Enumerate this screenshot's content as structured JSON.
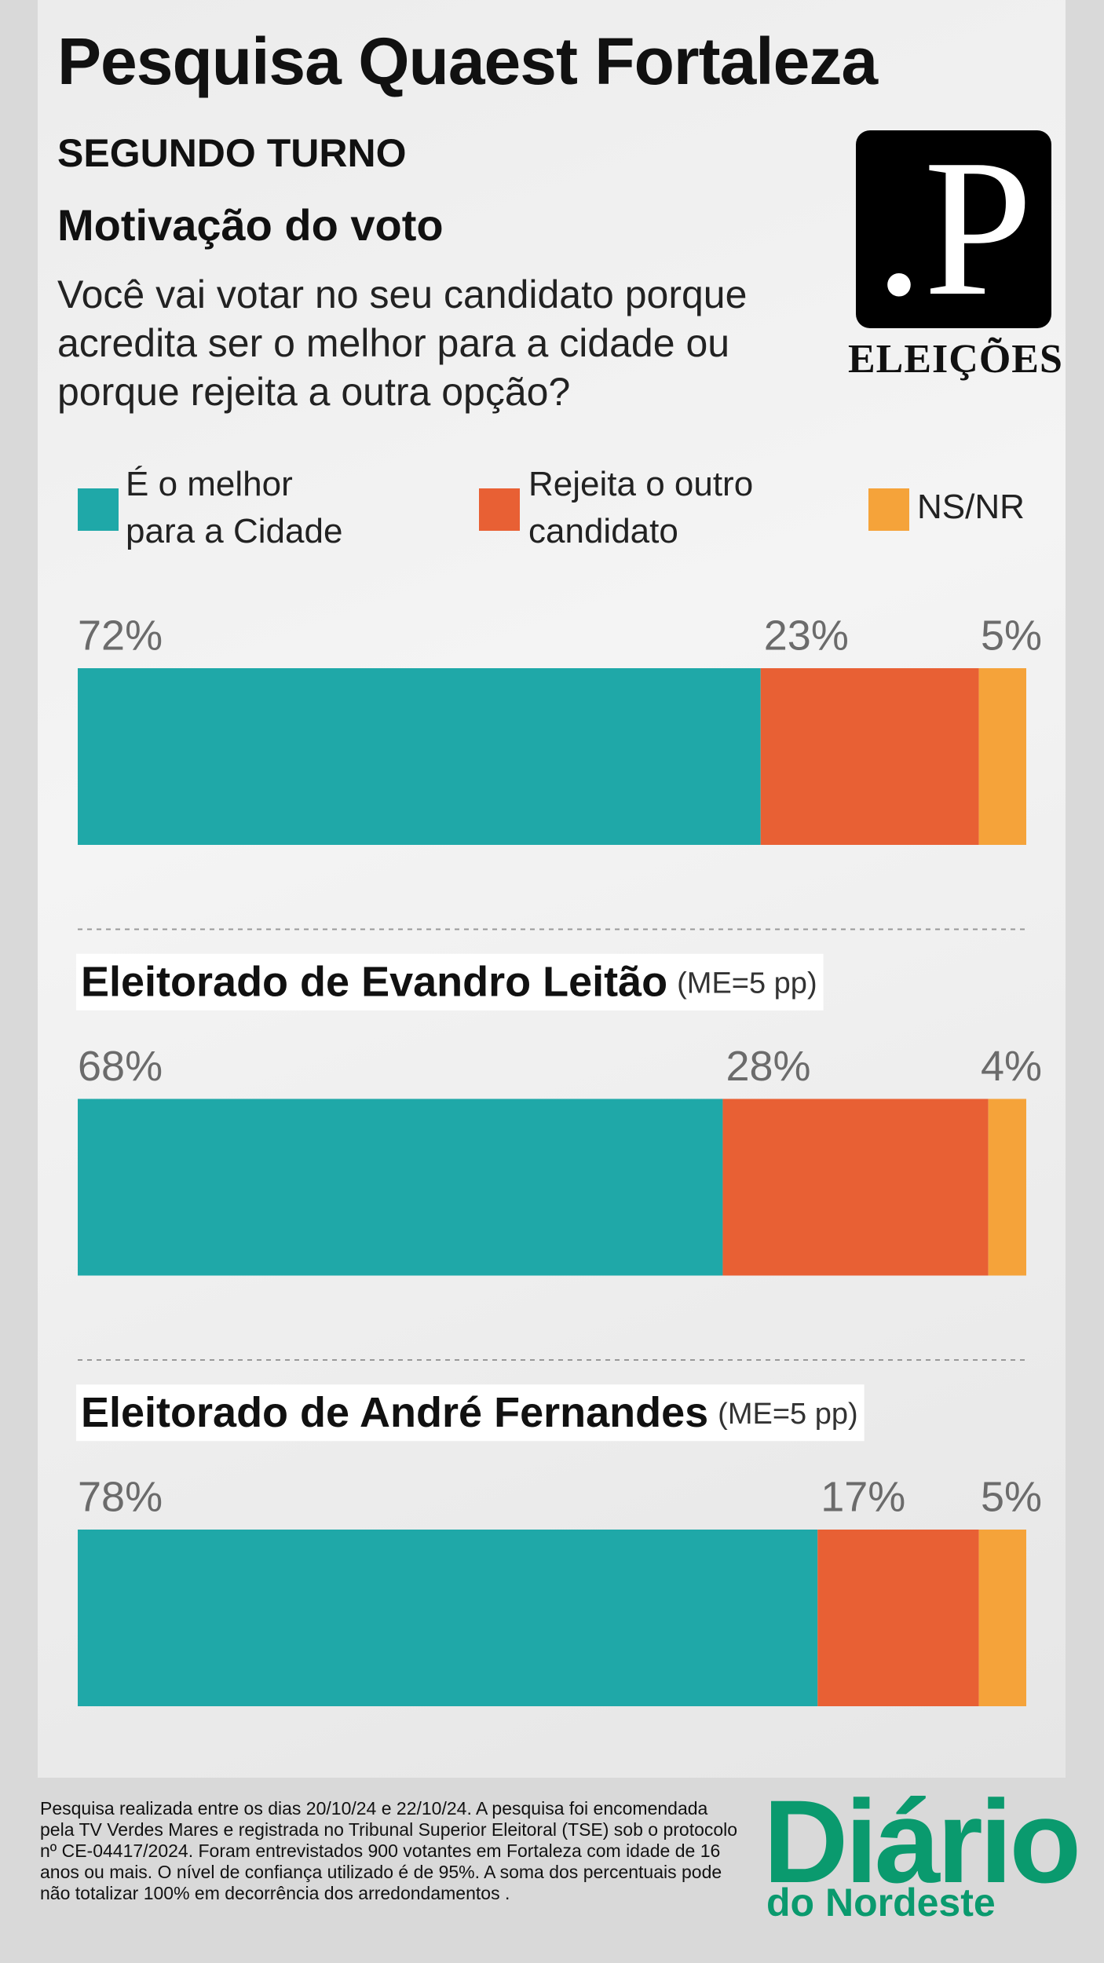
{
  "header": {
    "title": "Pesquisa Quaest Fortaleza",
    "round": "SEGUNDO TURNO",
    "subtitle": "Motivação do voto",
    "question": "Você vai votar no seu candidato porque acredita ser o melhor para a cidade ou porque rejeita a outra opção?"
  },
  "logo": {
    "mark": ".P",
    "label": "ELEIÇÕES"
  },
  "chart_data": {
    "type": "bar",
    "orientation": "horizontal",
    "stacked": true,
    "categories": [
      null,
      "Eleitorado de Evandro Leitão",
      "Eleitorado de André Fernandes"
    ],
    "notes": [
      null,
      "(ME=5 pp)",
      "(ME=5 pp)"
    ],
    "xlim": [
      0,
      100
    ],
    "series": [
      {
        "name": "É o melhor para a Cidade",
        "color": "#1fa8a8",
        "values": [
          72,
          68,
          78
        ],
        "value_labels": [
          "72%",
          "68%",
          "78%"
        ]
      },
      {
        "name": "Rejeita o outro candidato",
        "color": "#e86034",
        "values": [
          23,
          28,
          17
        ],
        "value_labels": [
          "23%",
          "28%",
          "17%"
        ]
      },
      {
        "name": "NS/NR",
        "color": "#f5a33a",
        "values": [
          5,
          4,
          5
        ],
        "value_labels": [
          "5%",
          "4%",
          "5%"
        ]
      }
    ]
  },
  "footer": {
    "note": "Pesquisa realizada entre os dias 20/10/24 e 22/10/24. A pesquisa foi encomendada pela TV Verdes Mares e registrada no Tribunal Superior Eleitoral (TSE) sob o protocolo nº CE-04417/2024. Foram entrevistados 900 votantes em Fortaleza com idade de 16 anos ou mais. O nível de confiança utilizado é de 95%. A soma dos percentuais pode não totalizar 100% em decorrência dos arredondamentos .",
    "brand": "Diário",
    "brand_sub": "do Nordeste"
  }
}
